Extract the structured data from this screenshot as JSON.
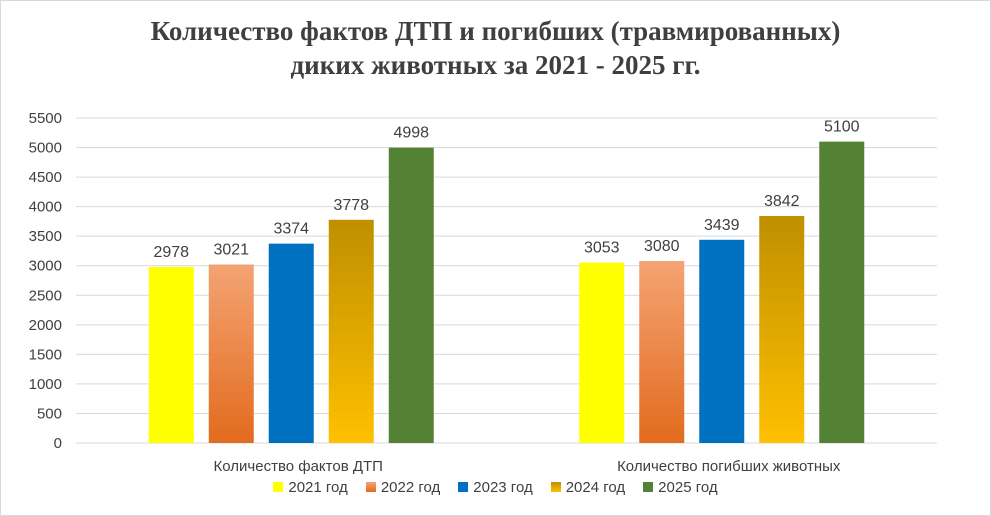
{
  "chart_data": {
    "type": "bar",
    "title_line1": "Количество фактов ДТП и погибших (травмированных)",
    "title_line2": "диких животных за 2021 - 2025 гг.",
    "categories": [
      "Количество фактов ДТП",
      "Количество погибших животных"
    ],
    "series": [
      {
        "name": "2021 год",
        "values": [
          2978,
          3053
        ],
        "color": "#ffff00",
        "gradient": [
          "#ffff00",
          "#ffff00"
        ]
      },
      {
        "name": "2022 год",
        "values": [
          3021,
          3080
        ],
        "color": "#ed7d31",
        "gradient": [
          "#f4a373",
          "#e26b1e"
        ]
      },
      {
        "name": "2023 год",
        "values": [
          3374,
          3439
        ],
        "color": "#0070c0",
        "gradient": [
          "#0070c0",
          "#0070c0"
        ]
      },
      {
        "name": "2024 год",
        "values": [
          3778,
          3842
        ],
        "color": "#ffc000",
        "gradient": [
          "#bf8f00",
          "#ffc000"
        ]
      },
      {
        "name": "2025 год",
        "values": [
          4998,
          5100
        ],
        "color": "#548235",
        "gradient": [
          "#548235",
          "#548235"
        ]
      }
    ],
    "ylim": [
      0,
      5500
    ],
    "yticks": [
      0,
      500,
      1000,
      1500,
      2000,
      2500,
      3000,
      3500,
      4000,
      4500,
      5000,
      5500
    ],
    "grid": true,
    "legend_position": "bottom"
  }
}
